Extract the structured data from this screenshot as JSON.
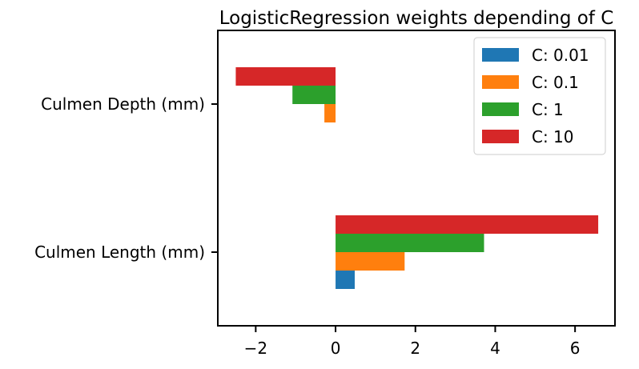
{
  "chart_data": {
    "type": "bar",
    "orientation": "horizontal",
    "title": "LogisticRegression weights depending of C",
    "xlabel": "",
    "ylabel": "",
    "categories": [
      "Culmen Length (mm)",
      "Culmen Depth (mm)"
    ],
    "series": [
      {
        "name": "C: 0.01",
        "color": "#1f77b4",
        "values": [
          0.48,
          0.0
        ]
      },
      {
        "name": "C: 0.1",
        "color": "#ff7f0e",
        "values": [
          1.73,
          -0.28
        ]
      },
      {
        "name": "C: 1",
        "color": "#2ca02c",
        "values": [
          3.72,
          -1.08
        ]
      },
      {
        "name": "C: 10",
        "color": "#d62728",
        "values": [
          6.58,
          -2.5
        ]
      }
    ],
    "xlim": [
      -2.95,
      7.0
    ],
    "xticks": [
      -2,
      0,
      2,
      4,
      6
    ],
    "xtick_labels": [
      "−2",
      "0",
      "2",
      "4",
      "6"
    ],
    "grid": false,
    "legend_position": "upper right"
  }
}
